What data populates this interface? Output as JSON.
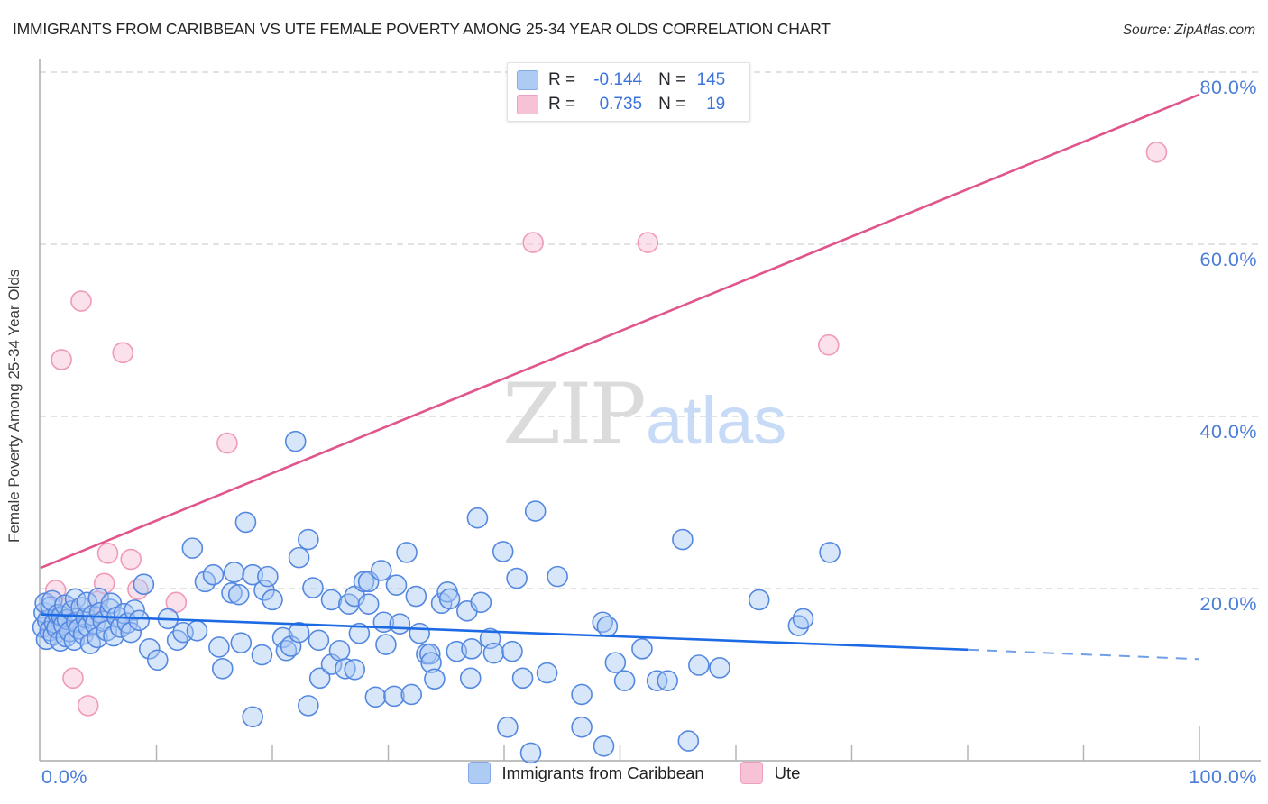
{
  "header": {
    "title": "IMMIGRANTS FROM CARIBBEAN VS UTE FEMALE POVERTY AMONG 25-34 YEAR OLDS CORRELATION CHART",
    "source": "Source: ZipAtlas.com"
  },
  "axes": {
    "y_label": "Female Poverty Among 25-34 Year Olds",
    "x_min_label": "0.0%",
    "x_max_label": "100.0%",
    "y_ticks": [
      {
        "label": "80.0%",
        "value": 80
      },
      {
        "label": "60.0%",
        "value": 60
      },
      {
        "label": "40.0%",
        "value": 40
      },
      {
        "label": "20.0%",
        "value": 20
      }
    ],
    "x_tick_values": [
      10,
      20,
      30,
      40,
      50,
      60,
      70,
      80,
      90,
      100
    ]
  },
  "legend_box": {
    "rows": [
      {
        "series": "Immigrants from Caribbean",
        "r_label": "R =",
        "r": "-0.144",
        "n_label": "N =",
        "n": "145"
      },
      {
        "series": "Ute",
        "r_label": "R =",
        "r": "0.735",
        "n_label": "N =",
        "n": "19"
      }
    ]
  },
  "bottom_legend": {
    "items": [
      {
        "label": "Immigrants from Caribbean"
      },
      {
        "label": "Ute"
      }
    ]
  },
  "watermark": {
    "zip": "ZIP",
    "atlas": "atlas"
  },
  "colors": {
    "series_blue_fill": "#a9c7f3",
    "series_blue_stroke": "#5488e0",
    "series_pink_fill": "#f8c9da",
    "series_pink_stroke": "#ef9ab9",
    "trend_blue": "#1d6ae5",
    "trend_blue_dash": "#6f9fe6",
    "trend_pink": "#e0558c",
    "gridline": "#d9d9d9",
    "axis": "#ababab",
    "tick": "#b5b5b5",
    "tick_label": "#4a7dd8",
    "watermark_zip": "#dbdbdb",
    "watermark_atlas": "#c8dbf6"
  },
  "chart_data": {
    "type": "scatter",
    "xlabel": "Immigrants from Caribbean (%)",
    "ylabel": "Female Poverty Among 25-34 Year Olds (%)",
    "xlim": [
      0,
      100
    ],
    "ylim": [
      0,
      85
    ],
    "grid": "dashed-horizontal",
    "legend_position": "top-center",
    "series": [
      {
        "name": "Immigrants from Caribbean",
        "r": -0.144,
        "n": 145,
        "points": [
          [
            0.2,
            15.5
          ],
          [
            0.3,
            17.2
          ],
          [
            0.4,
            18.3
          ],
          [
            0.5,
            14.1
          ],
          [
            0.6,
            16.3
          ],
          [
            0.8,
            15.1
          ],
          [
            0.9,
            17.9
          ],
          [
            1.0,
            18.6
          ],
          [
            1.1,
            14.6
          ],
          [
            1.2,
            16.0
          ],
          [
            1.4,
            15.4
          ],
          [
            1.5,
            17.0
          ],
          [
            1.7,
            13.9
          ],
          [
            1.8,
            16.8
          ],
          [
            2.0,
            15.8
          ],
          [
            2.1,
            18.1
          ],
          [
            2.2,
            14.4
          ],
          [
            2.3,
            16.4
          ],
          [
            2.5,
            15.0
          ],
          [
            2.7,
            17.4
          ],
          [
            2.9,
            14.0
          ],
          [
            3.0,
            18.8
          ],
          [
            3.1,
            16.1
          ],
          [
            3.3,
            15.3
          ],
          [
            3.5,
            17.8
          ],
          [
            3.7,
            14.7
          ],
          [
            3.9,
            16.6
          ],
          [
            4.0,
            18.4
          ],
          [
            4.1,
            15.6
          ],
          [
            4.3,
            13.6
          ],
          [
            4.5,
            16.9
          ],
          [
            4.7,
            15.9
          ],
          [
            4.9,
            14.3
          ],
          [
            5.0,
            18.9
          ],
          [
            5.1,
            17.2
          ],
          [
            5.4,
            16.2
          ],
          [
            5.7,
            15.1
          ],
          [
            6.0,
            17.6
          ],
          [
            6.1,
            18.3
          ],
          [
            6.3,
            14.5
          ],
          [
            6.6,
            16.7
          ],
          [
            6.9,
            15.5
          ],
          [
            7.2,
            17.1
          ],
          [
            7.5,
            16.0
          ],
          [
            7.8,
            14.9
          ],
          [
            8.1,
            17.5
          ],
          [
            8.5,
            16.3
          ],
          [
            9.4,
            13.0
          ],
          [
            11.0,
            16.5
          ],
          [
            8.9,
            20.5
          ],
          [
            10.1,
            11.7
          ],
          [
            11.8,
            14.0
          ],
          [
            12.3,
            14.9
          ],
          [
            13.1,
            24.7
          ],
          [
            13.5,
            15.1
          ],
          [
            14.2,
            20.8
          ],
          [
            14.9,
            21.6
          ],
          [
            15.4,
            13.2
          ],
          [
            15.7,
            10.7
          ],
          [
            16.5,
            19.5
          ],
          [
            16.7,
            21.9
          ],
          [
            17.1,
            19.3
          ],
          [
            17.3,
            13.7
          ],
          [
            17.7,
            27.7
          ],
          [
            18.3,
            21.6
          ],
          [
            18.3,
            5.1
          ],
          [
            19.1,
            12.3
          ],
          [
            19.3,
            19.8
          ],
          [
            19.6,
            21.4
          ],
          [
            20.0,
            18.7
          ],
          [
            20.9,
            14.3
          ],
          [
            21.2,
            12.8
          ],
          [
            21.6,
            13.3
          ],
          [
            22.0,
            37.1
          ],
          [
            22.3,
            23.6
          ],
          [
            22.3,
            14.9
          ],
          [
            23.1,
            25.7
          ],
          [
            23.1,
            6.4
          ],
          [
            23.5,
            20.1
          ],
          [
            24.0,
            14.0
          ],
          [
            24.1,
            9.6
          ],
          [
            25.1,
            18.7
          ],
          [
            25.1,
            11.2
          ],
          [
            25.8,
            12.8
          ],
          [
            26.3,
            10.7
          ],
          [
            26.6,
            18.2
          ],
          [
            27.1,
            19.1
          ],
          [
            27.1,
            10.6
          ],
          [
            27.5,
            14.8
          ],
          [
            27.9,
            20.8
          ],
          [
            28.3,
            20.8
          ],
          [
            28.3,
            18.2
          ],
          [
            28.9,
            7.4
          ],
          [
            29.4,
            22.1
          ],
          [
            29.6,
            16.1
          ],
          [
            29.8,
            13.5
          ],
          [
            30.5,
            7.5
          ],
          [
            30.7,
            20.4
          ],
          [
            31.0,
            15.9
          ],
          [
            31.6,
            24.2
          ],
          [
            32.0,
            7.7
          ],
          [
            32.4,
            19.1
          ],
          [
            32.7,
            14.8
          ],
          [
            33.3,
            12.4
          ],
          [
            33.6,
            12.4
          ],
          [
            33.7,
            11.4
          ],
          [
            34.0,
            9.5
          ],
          [
            34.6,
            18.3
          ],
          [
            35.1,
            19.6
          ],
          [
            35.3,
            18.8
          ],
          [
            35.9,
            12.7
          ],
          [
            36.8,
            17.4
          ],
          [
            37.1,
            9.6
          ],
          [
            37.2,
            13.0
          ],
          [
            37.7,
            28.2
          ],
          [
            38.0,
            18.4
          ],
          [
            38.8,
            14.2
          ],
          [
            39.1,
            12.5
          ],
          [
            39.9,
            24.3
          ],
          [
            40.3,
            3.9
          ],
          [
            40.7,
            12.7
          ],
          [
            41.1,
            21.2
          ],
          [
            41.6,
            9.6
          ],
          [
            42.3,
            0.9
          ],
          [
            42.7,
            29.0
          ],
          [
            43.7,
            10.2
          ],
          [
            44.6,
            21.4
          ],
          [
            46.7,
            7.7
          ],
          [
            46.7,
            3.9
          ],
          [
            48.5,
            16.1
          ],
          [
            48.6,
            1.7
          ],
          [
            48.9,
            15.6
          ],
          [
            49.6,
            11.4
          ],
          [
            50.4,
            9.3
          ],
          [
            51.9,
            13.0
          ],
          [
            53.2,
            9.3
          ],
          [
            54.1,
            9.3
          ],
          [
            55.4,
            25.7
          ],
          [
            55.9,
            2.3
          ],
          [
            56.8,
            11.1
          ],
          [
            58.6,
            10.8
          ],
          [
            62.0,
            18.7
          ],
          [
            65.4,
            15.7
          ],
          [
            65.8,
            16.5
          ],
          [
            68.1,
            24.2
          ]
        ]
      },
      {
        "name": "Ute",
        "r": 0.735,
        "n": 19,
        "points": [
          [
            0.9,
            15.5
          ],
          [
            1.3,
            19.8
          ],
          [
            1.8,
            46.6
          ],
          [
            2.4,
            17.8
          ],
          [
            2.8,
            9.6
          ],
          [
            3.5,
            53.4
          ],
          [
            4.1,
            6.4
          ],
          [
            4.9,
            18.5
          ],
          [
            5.5,
            20.6
          ],
          [
            5.8,
            24.1
          ],
          [
            7.1,
            47.4
          ],
          [
            7.8,
            23.4
          ],
          [
            8.4,
            19.9
          ],
          [
            11.7,
            18.4
          ],
          [
            16.1,
            36.9
          ],
          [
            42.5,
            60.2
          ],
          [
            52.4,
            60.2
          ],
          [
            68.0,
            48.3
          ],
          [
            96.3,
            70.7
          ]
        ]
      }
    ],
    "trend_lines": [
      {
        "series": "Immigrants from Caribbean",
        "start": [
          0,
          17.0
        ],
        "solid_end": [
          80,
          12.9
        ],
        "dashed_end": [
          100,
          11.8
        ]
      },
      {
        "series": "Ute",
        "start": [
          0,
          22.4
        ],
        "solid_end": [
          100,
          77.4
        ]
      }
    ]
  }
}
